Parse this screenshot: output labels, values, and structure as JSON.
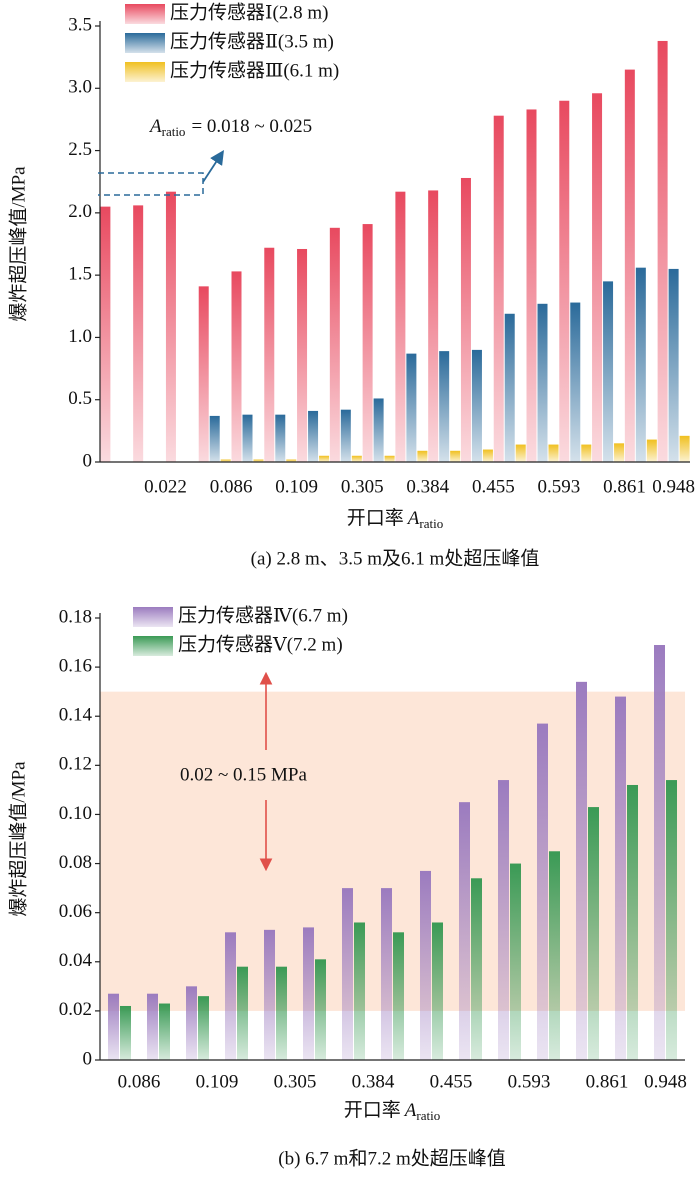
{
  "chart_data": [
    {
      "type": "bar",
      "ylabel": "爆炸超压峰值/MPa",
      "xlabel": {
        "text": "开口率",
        "symbol": "A",
        "subscript": "ratio"
      },
      "caption": "(a) 2.8 m、3.5 m及6.1 m处超压峰值",
      "annotation": {
        "symbol": "A",
        "subscript": "ratio",
        "text": "= 0.018 ~ 0.025"
      },
      "categories": [
        null,
        "0.022",
        null,
        "0.086",
        null,
        "0.109",
        null,
        "0.305",
        null,
        "0.384",
        null,
        "0.455",
        null,
        "0.593",
        null,
        "0.861",
        null,
        "0.948"
      ],
      "series": [
        {
          "name": "压力传感器Ⅰ(2.8 m)",
          "color": "#e8495f",
          "values": [
            2.05,
            2.06,
            2.17,
            1.41,
            1.53,
            1.72,
            1.71,
            1.88,
            1.91,
            2.17,
            2.18,
            2.28,
            2.78,
            2.83,
            2.9,
            2.96,
            3.15,
            3.38
          ]
        },
        {
          "name": "压力传感器Ⅱ(3.5 m)",
          "color": "#2a6a9a",
          "values": [
            null,
            null,
            null,
            0.37,
            0.38,
            0.38,
            0.41,
            0.42,
            0.51,
            0.87,
            0.89,
            0.9,
            1.19,
            1.27,
            1.28,
            1.45,
            1.56,
            1.55
          ]
        },
        {
          "name": "压力传感器Ⅲ(6.1 m)",
          "color": "#f0c020",
          "values": [
            null,
            null,
            null,
            0.02,
            0.02,
            0.02,
            0.05,
            0.05,
            0.05,
            0.09,
            0.09,
            0.1,
            0.14,
            0.14,
            0.14,
            0.15,
            0.18,
            0.21
          ]
        }
      ],
      "ylim": [
        0,
        3.5
      ],
      "yticks": [
        0,
        0.5,
        {
          "value": 1,
          "label": "1.0"
        },
        1.5,
        {
          "value": 2,
          "label": "2.0"
        },
        2.5,
        {
          "value": 3,
          "label": "3.0"
        },
        3.5
      ],
      "legend": "upper left"
    },
    {
      "type": "bar",
      "ylabel": "爆炸超压峰值/MPa",
      "xlabel": {
        "text": "开口率",
        "symbol": "A",
        "subscript": "ratio"
      },
      "caption": "(b) 6.7 m和7.2 m处超压峰值",
      "band": [
        0.02,
        0.15
      ],
      "band_label": "0.02 ~ 0.15 MPa",
      "categories": [
        "0.086",
        null,
        "0.109",
        null,
        "0.305",
        null,
        "0.384",
        null,
        "0.455",
        null,
        "0.593",
        null,
        "0.861",
        null,
        "0.948"
      ],
      "series": [
        {
          "name": "压力传感器Ⅳ(6.7 m)",
          "color": "#9b7bbf",
          "values": [
            0.027,
            0.027,
            0.03,
            0.052,
            0.053,
            0.054,
            0.07,
            0.07,
            0.077,
            0.105,
            0.114,
            0.137,
            0.154,
            0.148,
            0.169
          ]
        },
        {
          "name": "压力传感器Ⅴ(7.2 m)",
          "color": "#3a9a55",
          "values": [
            0.022,
            0.023,
            0.026,
            0.038,
            0.038,
            0.041,
            0.056,
            0.052,
            0.056,
            0.074,
            0.08,
            0.085,
            0.103,
            0.112,
            0.114
          ]
        }
      ],
      "ylim": [
        0,
        0.18
      ],
      "yticks": [
        0,
        0.02,
        0.04,
        0.06,
        0.08,
        {
          "value": 0.1,
          "label": "0.10"
        },
        0.12,
        0.14,
        0.16,
        0.18
      ],
      "legend": "upper left"
    }
  ]
}
